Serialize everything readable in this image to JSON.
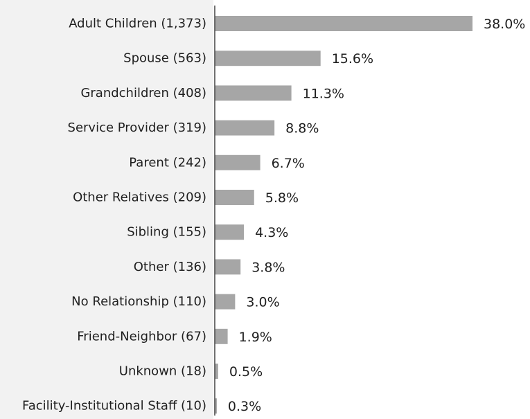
{
  "chart_data": {
    "type": "bar",
    "orientation": "horizontal",
    "categories": [
      "Adult Children (1,373)",
      "Spouse (563)",
      "Grandchildren (408)",
      "Service Provider (319)",
      "Parent (242)",
      "Other Relatives (209)",
      "Sibling (155)",
      "Other (136)",
      "No Relationship (110)",
      "Friend-Neighbor (67)",
      "Unknown (18)",
      "Facility-Institutional Staff (10)"
    ],
    "values": [
      38.0,
      15.6,
      11.3,
      8.8,
      6.7,
      5.8,
      4.3,
      3.8,
      3.0,
      1.9,
      0.5,
      0.3
    ],
    "value_labels": [
      "38.0%",
      "15.6%",
      "11.3%",
      "8.8%",
      "6.7%",
      "5.8%",
      "4.3%",
      "3.8%",
      "3.0%",
      "1.9%",
      "0.5%",
      "0.3%"
    ],
    "xlim": [
      0,
      38.0
    ],
    "grid": false,
    "legend": "none",
    "colors": {
      "bar": "#a6a6a6",
      "axis": "#404040",
      "label_panel": "#f2f2f2",
      "text": "#1f1f1f"
    }
  }
}
